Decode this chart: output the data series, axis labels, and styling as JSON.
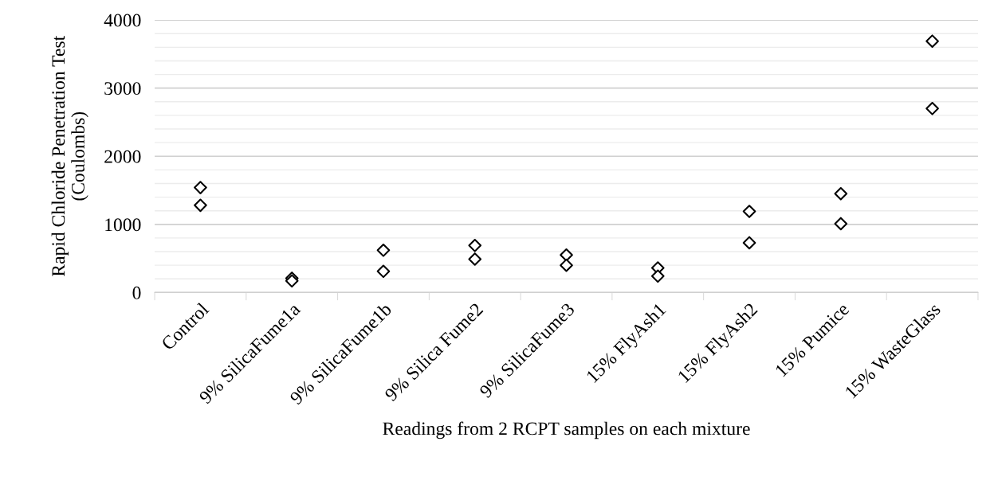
{
  "chart_data": {
    "type": "scatter",
    "xlabel": "Readings from 2 RCPT samples on each mixture",
    "ylabel": "Rapid Chloride Penetration Test\n(Coulombs)",
    "categories": [
      "Control",
      "9% SilicaFume1a",
      "9% SilicaFume1b",
      "9% Silica Fume2",
      "9% SilicaFume3",
      "15% FlyAsh1",
      "15% FlyAsh2",
      "15% Pumice",
      "15% WasteGlass"
    ],
    "series": [
      {
        "color": "#000000",
        "values": [
          1540,
          210,
          620,
          690,
          550,
          360,
          1190,
          1450,
          3690
        ]
      },
      {
        "color": "#000000",
        "values": [
          1280,
          170,
          310,
          490,
          400,
          240,
          730,
          1010,
          2700
        ]
      }
    ],
    "ylim": [
      0,
      4000
    ],
    "yticks": [
      0,
      1000,
      2000,
      3000,
      4000
    ],
    "grid": "y",
    "marker": "diamond",
    "legend": false
  }
}
